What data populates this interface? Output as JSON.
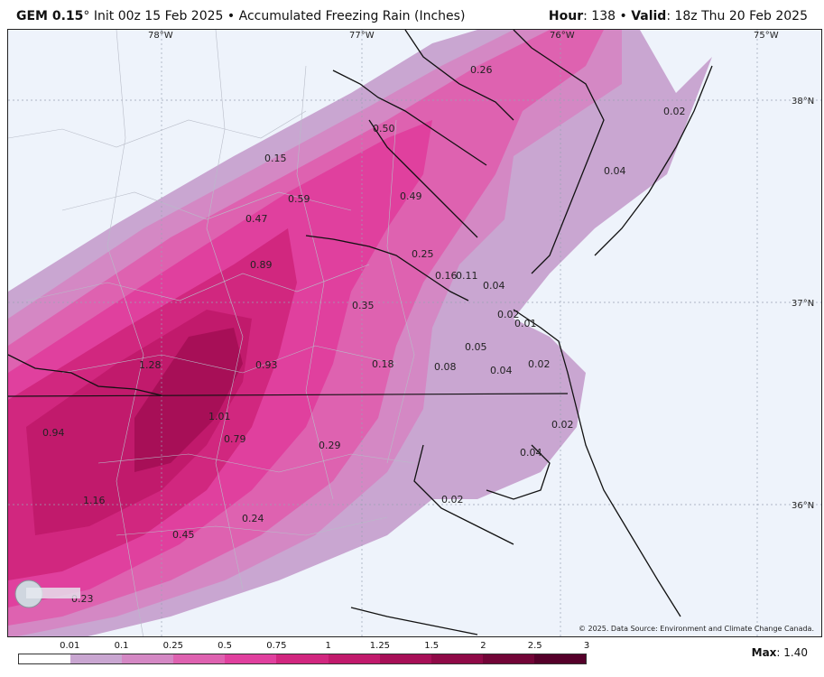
{
  "header": {
    "model": "GEM 0.15",
    "degree": "°",
    "init": "Init 00z 15 Feb 2025",
    "bullet": "•",
    "product": "Accumulated Freezing Rain (Inches)",
    "hour_label": "Hour",
    "hour_value": ": 138",
    "valid_label": "Valid",
    "valid_value": ": 18z Thu 20 Feb 2025"
  },
  "map": {
    "lon_labels": [
      "78°W",
      "77°W",
      "76°W",
      "75°W"
    ],
    "lat_labels": [
      "38°N",
      "37°N",
      "36°N"
    ],
    "values": [
      "0.26",
      "0.50",
      "0.02",
      "0.04",
      "0.15",
      "0.59",
      "0.49",
      "0.47",
      "0.89",
      "0.25",
      "0.16",
      "0.11",
      "0.04",
      "0.35",
      "0.02",
      "0.01",
      "0.05",
      "1.28",
      "0.93",
      "0.18",
      "0.08",
      "0.04",
      "0.02",
      "1.01",
      "0.02",
      "0.94",
      "0.79",
      "0.29",
      "0.04",
      "1.16",
      "0.02",
      "0.24",
      "0.45",
      "0.23"
    ],
    "credit": "© 2025. Data Source: Environment and Climate Change Canada.",
    "logo_text": "WEATHERBELL"
  },
  "legend": {
    "ticks": [
      "0.01",
      "0.1",
      "0.25",
      "0.5",
      "0.75",
      "1",
      "1.25",
      "1.5",
      "2",
      "2.5",
      "3"
    ],
    "colors": [
      "#ffffff",
      "#c9a6d1",
      "#d488c4",
      "#de62b0",
      "#e0409e",
      "#d1277f",
      "#c11a6c",
      "#a70f57",
      "#8f0a47",
      "#720537",
      "#55002a"
    ]
  },
  "max": {
    "label": "Max",
    "value": ": 1.40"
  }
}
